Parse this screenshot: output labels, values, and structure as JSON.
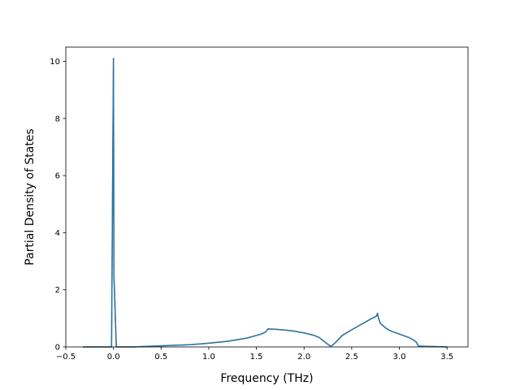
{
  "chart_data": {
    "type": "line",
    "title": "",
    "xlabel": "Frequency (THz)",
    "ylabel": "Partial Density of States",
    "xlim": [
      -0.5,
      3.72
    ],
    "ylim": [
      0,
      10.5
    ],
    "xticks": [
      -0.5,
      0.0,
      0.5,
      1.0,
      1.5,
      2.0,
      2.5,
      3.0,
      3.5
    ],
    "xtick_labels": [
      "−0.5",
      "0.0",
      "0.5",
      "1.0",
      "1.5",
      "2.0",
      "2.5",
      "3.0",
      "3.5"
    ],
    "yticks": [
      0,
      2,
      4,
      6,
      8,
      10
    ],
    "ytick_labels": [
      "0",
      "2",
      "4",
      "6",
      "8",
      "10"
    ],
    "grid": false,
    "legend": "none",
    "series": [
      {
        "color": "#ff7f0e",
        "x": [
          -0.32,
          -0.02,
          0.0,
          0.005,
          0.03,
          0.05,
          0.2,
          0.5,
          0.8,
          1.0,
          1.2,
          1.4,
          1.55,
          1.6,
          1.62,
          1.7,
          1.8,
          1.9,
          2.0,
          2.1,
          2.16,
          2.2,
          2.25,
          2.28,
          2.32,
          2.36,
          2.4,
          2.5,
          2.6,
          2.7,
          2.76,
          2.77,
          2.78,
          2.8,
          2.85,
          2.9,
          3.0,
          3.1,
          3.15,
          3.18,
          3.2,
          3.5
        ],
        "y": [
          0.0,
          0.0,
          10.1,
          2.5,
          0.0,
          0.0,
          0.0,
          0.04,
          0.08,
          0.13,
          0.2,
          0.31,
          0.45,
          0.53,
          0.63,
          0.62,
          0.59,
          0.55,
          0.49,
          0.41,
          0.33,
          0.22,
          0.09,
          0.02,
          0.12,
          0.26,
          0.4,
          0.6,
          0.79,
          0.98,
          1.08,
          1.18,
          1.02,
          0.83,
          0.68,
          0.57,
          0.45,
          0.33,
          0.24,
          0.16,
          0.03,
          0.0
        ]
      },
      {
        "color": "#1f77b4",
        "x": [
          -0.32,
          -0.02,
          0.0,
          0.005,
          0.03,
          0.05,
          0.2,
          0.5,
          0.8,
          1.0,
          1.2,
          1.4,
          1.55,
          1.6,
          1.62,
          1.7,
          1.8,
          1.9,
          2.0,
          2.1,
          2.16,
          2.2,
          2.25,
          2.28,
          2.32,
          2.36,
          2.4,
          2.5,
          2.6,
          2.7,
          2.76,
          2.77,
          2.78,
          2.8,
          2.85,
          2.9,
          3.0,
          3.1,
          3.15,
          3.18,
          3.2,
          3.5
        ],
        "y": [
          0.0,
          0.0,
          10.1,
          2.5,
          0.0,
          0.0,
          0.0,
          0.04,
          0.08,
          0.13,
          0.2,
          0.31,
          0.45,
          0.53,
          0.63,
          0.62,
          0.59,
          0.55,
          0.49,
          0.41,
          0.33,
          0.22,
          0.09,
          0.02,
          0.12,
          0.26,
          0.4,
          0.6,
          0.79,
          0.98,
          1.08,
          1.18,
          1.02,
          0.83,
          0.68,
          0.57,
          0.45,
          0.33,
          0.24,
          0.16,
          0.03,
          0.0
        ]
      }
    ]
  }
}
